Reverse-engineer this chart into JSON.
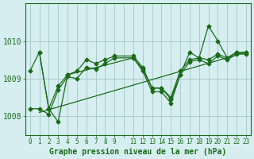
{
  "xlabel": "Graphe pression niveau de la mer (hPa)",
  "ylabel": "",
  "background_color": "#d6eef0",
  "line_color": "#1a6b1a",
  "grid_color": "#aacccc",
  "xlim": [
    -0.5,
    23.5
  ],
  "ylim": [
    1007.5,
    1011.0
  ],
  "yticks": [
    1008,
    1009,
    1010
  ],
  "xticks": [
    0,
    1,
    2,
    3,
    4,
    5,
    6,
    7,
    8,
    9,
    10,
    11,
    12,
    13,
    14,
    15,
    16,
    17,
    18,
    19,
    20,
    21,
    22,
    23
  ],
  "xtick_labels": [
    "0",
    "1",
    "2",
    "3",
    "4",
    "5",
    "6",
    "7",
    "8",
    "9",
    "",
    "11",
    "12",
    "13",
    "14",
    "15",
    "16",
    "17",
    "18",
    "19",
    "20",
    "21",
    "22",
    "23"
  ],
  "line1_x": [
    0,
    1,
    2,
    3,
    4,
    5,
    6,
    7,
    8,
    9,
    11,
    12,
    13,
    14,
    15,
    16,
    17,
    18,
    19,
    20,
    21,
    22,
    23
  ],
  "line1_y": [
    1009.2,
    1009.7,
    1008.2,
    1008.8,
    1009.1,
    1009.2,
    1009.5,
    1009.4,
    1009.5,
    1009.6,
    1009.6,
    1009.3,
    1008.75,
    1008.75,
    1008.5,
    1009.2,
    1009.5,
    1009.55,
    1009.5,
    1009.65,
    1009.55,
    1009.7,
    1009.7
  ],
  "line2_x": [
    0,
    1,
    2,
    3,
    4,
    5,
    6,
    7,
    8,
    9,
    11,
    12,
    13,
    14,
    15,
    16,
    17,
    18,
    19,
    20,
    21,
    22,
    23
  ],
  "line2_y": [
    1008.2,
    1008.2,
    1008.05,
    1008.7,
    1009.05,
    1009.0,
    1009.3,
    1009.25,
    1009.4,
    1009.55,
    1009.55,
    1009.2,
    1008.65,
    1008.65,
    1008.35,
    1009.1,
    1009.45,
    1009.5,
    1009.4,
    1009.6,
    1009.5,
    1009.65,
    1009.65
  ],
  "line3_x": [
    1,
    2,
    3,
    4,
    11,
    12,
    13,
    14,
    15,
    16,
    17,
    18,
    19,
    20,
    21,
    22,
    23
  ],
  "line3_y": [
    1009.7,
    1008.2,
    1007.85,
    1009.1,
    1009.55,
    1009.25,
    1008.75,
    1008.75,
    1008.45,
    1009.1,
    1009.7,
    1009.55,
    1010.4,
    1010.0,
    1009.55,
    1009.7,
    1009.7
  ],
  "trend_x": [
    1,
    23
  ],
  "trend_y": [
    1008.1,
    1009.7
  ]
}
